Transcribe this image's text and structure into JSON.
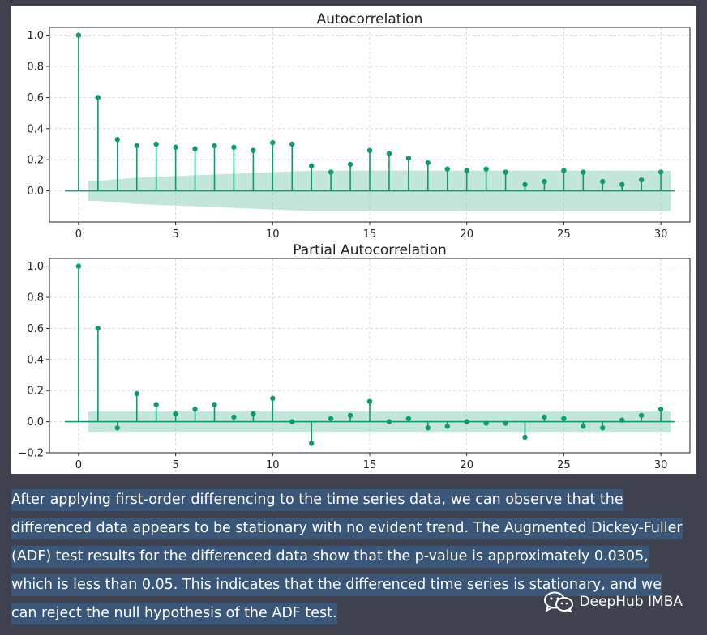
{
  "colors": {
    "page_background": "#40414f",
    "stem": "#0f9a72",
    "confidence_band": "#8fd1bb",
    "text_highlight": "#3a5679"
  },
  "chart_data": [
    {
      "type": "stem",
      "title": "Autocorrelation",
      "xlabel": "",
      "ylabel": "",
      "xlim": [
        -1.5,
        31.5
      ],
      "ylim": [
        -0.2,
        1.05
      ],
      "xticks": [
        0,
        5,
        10,
        15,
        20,
        25,
        30
      ],
      "xtick_labels": [
        "0",
        "5",
        "10",
        "15",
        "20",
        "25",
        "30"
      ],
      "yticks": [
        0.0,
        0.2,
        0.4,
        0.6,
        0.8,
        1.0
      ],
      "ytick_labels": [
        "0.0",
        "0.2",
        "0.4",
        "0.6",
        "0.8",
        "1.0"
      ],
      "grid": true,
      "x": [
        0,
        1,
        2,
        3,
        4,
        5,
        6,
        7,
        8,
        9,
        10,
        11,
        12,
        13,
        14,
        15,
        16,
        17,
        18,
        19,
        20,
        21,
        22,
        23,
        24,
        25,
        26,
        27,
        28,
        29,
        30
      ],
      "values": [
        1.0,
        0.6,
        0.33,
        0.29,
        0.3,
        0.28,
        0.27,
        0.29,
        0.28,
        0.26,
        0.31,
        0.3,
        0.16,
        0.12,
        0.17,
        0.26,
        0.24,
        0.21,
        0.18,
        0.14,
        0.13,
        0.14,
        0.12,
        0.04,
        0.06,
        0.13,
        0.12,
        0.06,
        0.04,
        0.07,
        0.12
      ],
      "confidence_band": {
        "x": [
          0.5,
          1,
          2,
          3,
          4,
          5,
          6,
          7,
          8,
          9,
          10,
          11,
          12,
          13,
          14,
          15,
          16,
          17,
          18,
          19,
          20,
          21,
          22,
          23,
          24,
          25,
          26,
          27,
          28,
          29,
          30,
          30.5
        ],
        "upper": [
          0.065,
          0.065,
          0.075,
          0.085,
          0.09,
          0.095,
          0.1,
          0.105,
          0.11,
          0.115,
          0.12,
          0.125,
          0.13,
          0.13,
          0.13,
          0.13,
          0.13,
          0.13,
          0.13,
          0.13,
          0.13,
          0.13,
          0.13,
          0.13,
          0.13,
          0.13,
          0.13,
          0.13,
          0.13,
          0.13,
          0.13,
          0.13
        ],
        "lower": [
          -0.065,
          -0.065,
          -0.075,
          -0.085,
          -0.09,
          -0.095,
          -0.1,
          -0.105,
          -0.11,
          -0.115,
          -0.12,
          -0.125,
          -0.13,
          -0.13,
          -0.13,
          -0.13,
          -0.13,
          -0.13,
          -0.13,
          -0.13,
          -0.13,
          -0.13,
          -0.13,
          -0.13,
          -0.13,
          -0.13,
          -0.13,
          -0.13,
          -0.13,
          -0.13,
          -0.13,
          -0.13
        ]
      }
    },
    {
      "type": "stem",
      "title": "Partial Autocorrelation",
      "xlabel": "",
      "ylabel": "",
      "xlim": [
        -1.5,
        31.5
      ],
      "ylim": [
        -0.2,
        1.05
      ],
      "xticks": [
        0,
        5,
        10,
        15,
        20,
        25,
        30
      ],
      "xtick_labels": [
        "0",
        "5",
        "10",
        "15",
        "20",
        "25",
        "30"
      ],
      "yticks": [
        -0.2,
        0.0,
        0.2,
        0.4,
        0.6,
        0.8,
        1.0
      ],
      "ytick_labels": [
        "−0.2",
        "0.0",
        "0.2",
        "0.4",
        "0.6",
        "0.8",
        "1.0"
      ],
      "grid": true,
      "x": [
        0,
        1,
        2,
        3,
        4,
        5,
        6,
        7,
        8,
        9,
        10,
        11,
        12,
        13,
        14,
        15,
        16,
        17,
        18,
        19,
        20,
        21,
        22,
        23,
        24,
        25,
        26,
        27,
        28,
        29,
        30
      ],
      "values": [
        1.0,
        0.6,
        -0.04,
        0.18,
        0.11,
        0.05,
        0.08,
        0.11,
        0.03,
        0.05,
        0.15,
        0.0,
        -0.14,
        0.02,
        0.04,
        0.13,
        0.0,
        0.02,
        -0.04,
        -0.03,
        0.0,
        -0.01,
        -0.01,
        -0.1,
        0.03,
        0.02,
        -0.03,
        -0.04,
        0.01,
        0.04,
        0.08
      ],
      "confidence_band": {
        "x": [
          0.5,
          30.5
        ],
        "upper": [
          0.065,
          0.065
        ],
        "lower": [
          -0.065,
          -0.065
        ]
      }
    }
  ],
  "message": {
    "text": "After applying first-order differencing to the time series data, we can observe that the differenced data appears to be stationary with no evident trend. The Augmented Dickey-Fuller (ADF) test results for the differenced data show that the p-value is approximately 0.0305, which is less than 0.05. This indicates that the differenced time series is stationary, and we can reject the null hypothesis of the ADF test."
  },
  "watermark": {
    "icon": "wechat-icon",
    "text": "DeepHub IMBA"
  }
}
